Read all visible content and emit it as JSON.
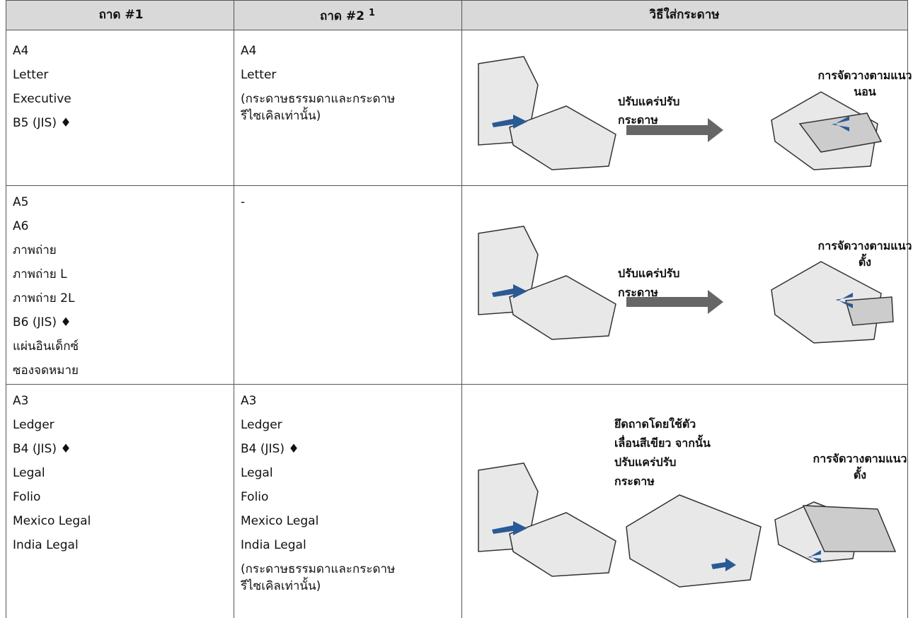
{
  "table": {
    "header": {
      "col1": "ถาด #1",
      "col2": "ถาด #2",
      "col2_note": "1",
      "col3": "วิธีใส่กระดาษ"
    },
    "rows": [
      {
        "tray1": [
          "A4",
          "Letter",
          "Executive",
          "B5 (JIS) ♦"
        ],
        "tray2": [
          "A4",
          "Letter"
        ],
        "tray2_note": [
          "(กระดาษธรรมดาและกระดาษ",
          "รีไซเคิลเท่านั้น)"
        ],
        "instruction": [
          "ปรับแคร่ปรับ",
          "กระดาษ"
        ],
        "orientation": [
          "การจัดวางตามแนว",
          "นอน"
        ]
      },
      {
        "tray1": [
          "A5",
          "A6",
          "ภาพถ่าย",
          "ภาพถ่าย L",
          "ภาพถ่าย 2L",
          "B6 (JIS) ♦",
          "แผ่นอินเด็กซ์",
          "ซองจดหมาย"
        ],
        "tray2": [
          "-"
        ],
        "instruction": [
          "ปรับแคร่ปรับ",
          "กระดาษ"
        ],
        "orientation": [
          "การจัดวางตามแนว",
          "ตั้ง"
        ]
      },
      {
        "tray1": [
          "A3",
          "Ledger",
          "B4 (JIS) ♦",
          "Legal",
          "Folio",
          "Mexico Legal",
          "India Legal"
        ],
        "tray2": [
          "A3",
          "Ledger",
          "B4 (JIS) ♦",
          "Legal",
          "Folio",
          "Mexico Legal",
          "India Legal"
        ],
        "tray2_note": [
          "(กระดาษธรรมดาและกระดาษ",
          "รีไซเคิลเท่านั้น)"
        ],
        "instruction": [
          "ยึดถาดโดยใช้ตัว",
          "เลื่อนสีเขียว จากนั้น",
          "ปรับแคร่ปรับ",
          "กระดาษ"
        ],
        "orientation": [
          "การจัดวางตามแนว",
          "ตั้ง"
        ]
      }
    ]
  }
}
